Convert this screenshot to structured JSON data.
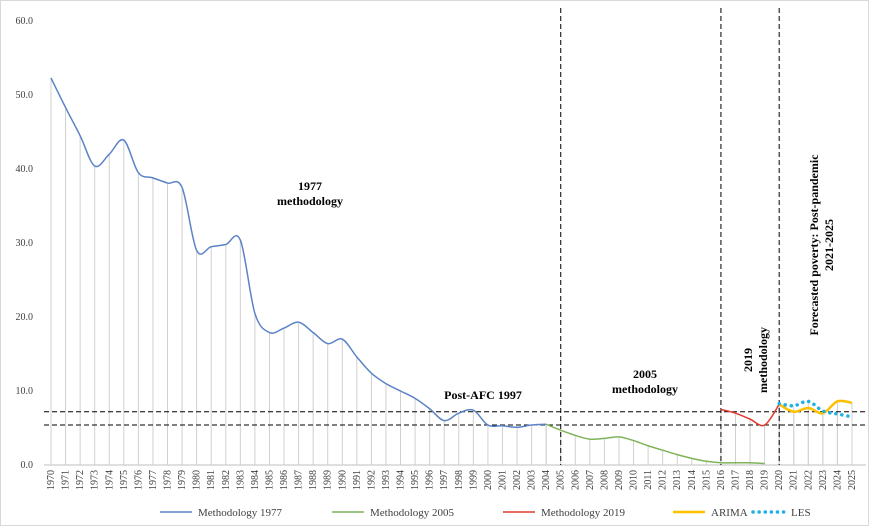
{
  "chart_data": {
    "type": "line",
    "categories": [
      "1970",
      "1971",
      "1972",
      "1973",
      "1974",
      "1975",
      "1976",
      "1977",
      "1978",
      "1979",
      "1980",
      "1981",
      "1982",
      "1983",
      "1984",
      "1985",
      "1986",
      "1987",
      "1988",
      "1989",
      "1990",
      "1991",
      "1992",
      "1993",
      "1994",
      "1995",
      "1996",
      "1997",
      "1998",
      "1999",
      "2000",
      "2001",
      "2002",
      "2003",
      "2004",
      "2005",
      "2006",
      "2007",
      "2008",
      "2009",
      "2010",
      "2011",
      "2012",
      "2013",
      "2014",
      "2015",
      "2016",
      "2017",
      "2018",
      "2019",
      "2020",
      "2021",
      "2022",
      "2023",
      "2024",
      "2025"
    ],
    "series": [
      {
        "name": "Methodology 1977",
        "color": "#5b83c6",
        "values": [
          52.3,
          48.3,
          44.5,
          40.4,
          42.0,
          43.9,
          39.5,
          38.8,
          38.1,
          37.5,
          29.0,
          29.5,
          29.8,
          30.4,
          20.5,
          17.9,
          18.5,
          19.3,
          17.9,
          16.4,
          17.0,
          14.6,
          12.4,
          11.0,
          10.0,
          9.0,
          7.6,
          6.0,
          7.0,
          7.4,
          5.4,
          5.3,
          5.1,
          5.4,
          5.5,
          null,
          null,
          null,
          null,
          null,
          null,
          null,
          null,
          null,
          null,
          null,
          null,
          null,
          null,
          null,
          null,
          null,
          null,
          null,
          null,
          null
        ]
      },
      {
        "name": "Methodology 2005",
        "color": "#7fb35a",
        "values": [
          null,
          null,
          null,
          null,
          null,
          null,
          null,
          null,
          null,
          null,
          null,
          null,
          null,
          null,
          null,
          null,
          null,
          null,
          null,
          null,
          null,
          null,
          null,
          null,
          null,
          null,
          null,
          null,
          null,
          null,
          null,
          null,
          null,
          null,
          5.5,
          4.7,
          4.0,
          3.5,
          3.6,
          3.8,
          3.3,
          2.6,
          2.0,
          1.4,
          0.9,
          0.5,
          0.3,
          0.3,
          0.3,
          0.2,
          null,
          null,
          null,
          null,
          null,
          null
        ]
      },
      {
        "name": "Methodology 2019",
        "color": "#e03a2f",
        "values": [
          null,
          null,
          null,
          null,
          null,
          null,
          null,
          null,
          null,
          null,
          null,
          null,
          null,
          null,
          null,
          null,
          null,
          null,
          null,
          null,
          null,
          null,
          null,
          null,
          null,
          null,
          null,
          null,
          null,
          null,
          null,
          null,
          null,
          null,
          null,
          null,
          null,
          null,
          null,
          null,
          null,
          null,
          null,
          null,
          null,
          null,
          7.5,
          7.0,
          6.2,
          5.4,
          8.2,
          null,
          null,
          null,
          null,
          null
        ]
      },
      {
        "name": "ARIMA",
        "color": "#ffc000",
        "values": [
          null,
          null,
          null,
          null,
          null,
          null,
          null,
          null,
          null,
          null,
          null,
          null,
          null,
          null,
          null,
          null,
          null,
          null,
          null,
          null,
          null,
          null,
          null,
          null,
          null,
          null,
          null,
          null,
          null,
          null,
          null,
          null,
          null,
          null,
          null,
          null,
          null,
          null,
          null,
          null,
          null,
          null,
          null,
          null,
          null,
          null,
          null,
          null,
          null,
          null,
          8.2,
          7.2,
          7.7,
          7.0,
          8.6,
          8.4
        ]
      },
      {
        "name": "LES",
        "color": "#1fb0e8",
        "dashed": true,
        "values": [
          null,
          null,
          null,
          null,
          null,
          null,
          null,
          null,
          null,
          null,
          null,
          null,
          null,
          null,
          null,
          null,
          null,
          null,
          null,
          null,
          null,
          null,
          null,
          null,
          null,
          null,
          null,
          null,
          null,
          null,
          null,
          null,
          null,
          null,
          null,
          null,
          null,
          null,
          null,
          null,
          null,
          null,
          null,
          null,
          null,
          null,
          null,
          null,
          null,
          null,
          8.3,
          8.0,
          8.6,
          7.3,
          6.9,
          6.5
        ]
      }
    ],
    "ylim": [
      0,
      60
    ],
    "yticks": [
      {
        "value": 0,
        "label": "0.0"
      },
      {
        "value": 10,
        "label": "10.0"
      },
      {
        "value": 20,
        "label": "20.0"
      },
      {
        "value": 30,
        "label": "30.0"
      },
      {
        "value": 40,
        "label": "40.0"
      },
      {
        "value": 50,
        "label": "50.0"
      },
      {
        "value": 60,
        "label": "60.0"
      }
    ],
    "reference_lines": [
      7.2,
      5.4
    ],
    "vertical_lines": [
      "2005",
      "2016",
      "2020"
    ],
    "annotations": {
      "m1977": [
        "1977",
        "methodology"
      ],
      "post_afc": "Post-AFC 1997",
      "m2005": [
        "2005",
        "methodology"
      ],
      "m2019": [
        "2019",
        "methodology"
      ],
      "forecast": [
        "Forecasted poverty: Post-pandemic",
        "2021-2025"
      ]
    },
    "legend": "bottom"
  }
}
